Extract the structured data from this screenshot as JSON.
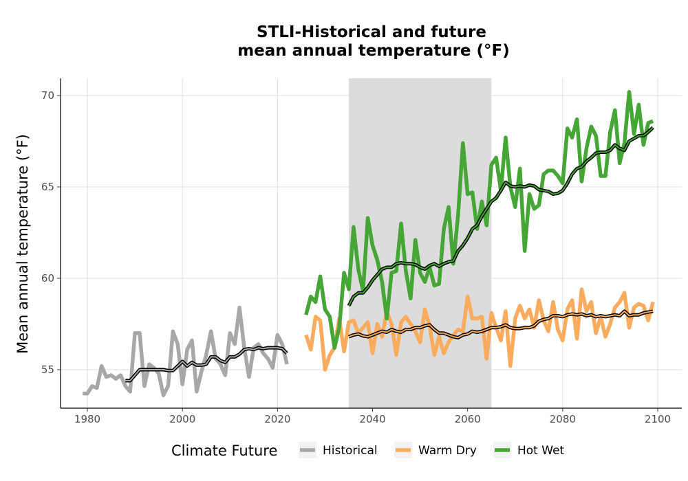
{
  "chart_data": {
    "type": "line",
    "title_line1": "STLI-Historical and future",
    "title_line2": "mean annual temperature (°F)",
    "xlabel": "",
    "ylabel": "Mean annual temperature (°F)",
    "xlim": [
      1977,
      2105
    ],
    "ylim": [
      52.9,
      71
    ],
    "x_ticks": [
      1980,
      2000,
      2020,
      2040,
      2060,
      2080,
      2100
    ],
    "y_ticks": [
      55,
      60,
      65,
      70
    ],
    "grid": true,
    "shaded_period": [
      2035,
      2065
    ],
    "legend": {
      "title": "Climate Future",
      "position": "bottom",
      "items": [
        {
          "label": "Historical",
          "color": "#a8a8a8"
        },
        {
          "label": "Warm Dry",
          "color": "#f9ac5e"
        },
        {
          "label": "Hot Wet",
          "color": "#45a535"
        }
      ]
    },
    "series": [
      {
        "name": "Historical",
        "color": "#a8a8a8",
        "x": [
          1979,
          1980,
          1981,
          1982,
          1983,
          1984,
          1985,
          1986,
          1987,
          1988,
          1989,
          1990,
          1991,
          1992,
          1993,
          1994,
          1995,
          1996,
          1997,
          1998,
          1999,
          2000,
          2001,
          2002,
          2003,
          2004,
          2005,
          2006,
          2007,
          2008,
          2009,
          2010,
          2011,
          2012,
          2013,
          2014,
          2015,
          2016,
          2017,
          2018,
          2019,
          2020,
          2021,
          2022
        ],
        "values": [
          53.7,
          53.7,
          54.1,
          54.0,
          55.2,
          54.6,
          54.7,
          54.5,
          54.7,
          54.1,
          53.8,
          57.0,
          57.0,
          54.1,
          55.3,
          55.1,
          54.8,
          53.6,
          54.1,
          57.1,
          56.4,
          54.2,
          56.1,
          56.6,
          53.8,
          54.9,
          55.8,
          57.1,
          55.6,
          55.3,
          54.7,
          57.0,
          56.4,
          58.4,
          56.2,
          54.6,
          56.2,
          56.4,
          55.9,
          55.6,
          55.1,
          56.9,
          56.4,
          55.3
        ],
        "smooth_x": [
          1988,
          1989,
          1990,
          1991,
          1992,
          1993,
          1994,
          1995,
          1996,
          1997,
          1998,
          1999,
          2000,
          2001,
          2002,
          2003,
          2004,
          2005,
          2006,
          2007,
          2008,
          2009,
          2010,
          2011,
          2012,
          2013,
          2014,
          2015,
          2016,
          2017,
          2018,
          2019,
          2020,
          2021,
          2022
        ],
        "smooth_values": [
          54.4,
          54.4,
          54.7,
          55.0,
          55.0,
          55.0,
          55.0,
          55.0,
          55.0,
          54.95,
          54.95,
          55.2,
          55.45,
          55.2,
          55.4,
          55.25,
          55.25,
          55.3,
          55.7,
          55.7,
          55.5,
          55.4,
          55.7,
          55.7,
          55.85,
          56.1,
          56.15,
          56.1,
          56.2,
          56.15,
          56.2,
          56.2,
          56.2,
          56.15,
          55.9
        ]
      },
      {
        "name": "Warm Dry",
        "color": "#f9ac5e",
        "x": [
          2026,
          2027,
          2028,
          2029,
          2030,
          2031,
          2032,
          2033,
          2034,
          2035,
          2036,
          2037,
          2038,
          2039,
          2040,
          2041,
          2042,
          2043,
          2044,
          2045,
          2046,
          2047,
          2048,
          2049,
          2050,
          2051,
          2052,
          2053,
          2054,
          2055,
          2056,
          2057,
          2058,
          2059,
          2060,
          2061,
          2062,
          2063,
          2064,
          2065,
          2066,
          2067,
          2068,
          2069,
          2070,
          2071,
          2072,
          2073,
          2074,
          2075,
          2076,
          2077,
          2078,
          2079,
          2080,
          2081,
          2082,
          2083,
          2084,
          2085,
          2086,
          2087,
          2088,
          2089,
          2090,
          2091,
          2092,
          2093,
          2094,
          2095,
          2096,
          2097,
          2098,
          2099
        ],
        "values": [
          56.9,
          56.1,
          57.9,
          57.7,
          55.0,
          55.8,
          56.2,
          57.8,
          56.0,
          57.6,
          57.7,
          57.0,
          57.3,
          57.6,
          55.9,
          57.5,
          56.8,
          58.2,
          57.5,
          55.8,
          57.6,
          57.9,
          57.5,
          57.1,
          56.5,
          58.3,
          57.4,
          55.8,
          56.8,
          55.9,
          56.5,
          56.9,
          57.2,
          57.1,
          59.0,
          57.8,
          57.8,
          57.9,
          55.6,
          58.1,
          57.3,
          56.6,
          58.2,
          55.2,
          57.8,
          58.5,
          57.8,
          58.3,
          57.3,
          58.8,
          57.7,
          57.1,
          58.7,
          57.2,
          56.6,
          58.3,
          58.8,
          56.7,
          59.4,
          58.2,
          58.7,
          57.0,
          57.9,
          56.8,
          57.5,
          58.4,
          58.7,
          59.2,
          57.3,
          58.4,
          58.6,
          58.5,
          57.7,
          58.7
        ],
        "smooth_x": [
          2035,
          2036,
          2037,
          2038,
          2039,
          2040,
          2041,
          2042,
          2043,
          2044,
          2045,
          2046,
          2047,
          2048,
          2049,
          2050,
          2051,
          2052,
          2053,
          2054,
          2055,
          2056,
          2057,
          2058,
          2059,
          2060,
          2061,
          2062,
          2063,
          2064,
          2065,
          2066,
          2067,
          2068,
          2069,
          2070,
          2071,
          2072,
          2073,
          2074,
          2075,
          2076,
          2077,
          2078,
          2079,
          2080,
          2081,
          2082,
          2083,
          2084,
          2085,
          2086,
          2087,
          2088,
          2089,
          2090,
          2091,
          2092,
          2093,
          2094,
          2095,
          2096,
          2097,
          2098,
          2099
        ],
        "smooth_values": [
          56.8,
          56.9,
          56.95,
          56.85,
          56.8,
          56.9,
          57.0,
          57.1,
          57.05,
          57.2,
          57.1,
          57.05,
          57.2,
          57.2,
          57.3,
          57.3,
          57.4,
          57.45,
          57.2,
          57.0,
          57.0,
          56.9,
          56.8,
          56.75,
          56.9,
          56.95,
          57.1,
          57.05,
          57.1,
          57.2,
          57.3,
          57.3,
          57.35,
          57.45,
          57.3,
          57.25,
          57.25,
          57.3,
          57.3,
          57.4,
          57.65,
          57.75,
          57.8,
          57.95,
          57.95,
          57.9,
          58.0,
          58.05,
          58.0,
          58.05,
          57.95,
          58.0,
          57.9,
          57.95,
          57.9,
          57.95,
          58.0,
          57.95,
          58.2,
          57.95,
          58.0,
          58.0,
          58.1,
          58.15,
          58.2
        ]
      },
      {
        "name": "Hot Wet",
        "color": "#45a535",
        "x": [
          2026,
          2027,
          2028,
          2029,
          2030,
          2031,
          2032,
          2033,
          2034,
          2035,
          2036,
          2037,
          2038,
          2039,
          2040,
          2041,
          2042,
          2043,
          2044,
          2045,
          2046,
          2047,
          2048,
          2049,
          2050,
          2051,
          2052,
          2053,
          2054,
          2055,
          2056,
          2057,
          2058,
          2059,
          2060,
          2061,
          2062,
          2063,
          2064,
          2065,
          2066,
          2067,
          2068,
          2069,
          2070,
          2071,
          2072,
          2073,
          2074,
          2075,
          2076,
          2077,
          2078,
          2079,
          2080,
          2081,
          2082,
          2083,
          2084,
          2085,
          2086,
          2087,
          2088,
          2089,
          2090,
          2091,
          2092,
          2093,
          2094,
          2095,
          2096,
          2097,
          2098,
          2099
        ],
        "values": [
          58.0,
          59.0,
          58.7,
          60.1,
          58.3,
          57.9,
          56.2,
          57.3,
          60.3,
          59.4,
          62.8,
          60.5,
          59.3,
          63.3,
          61.8,
          61.0,
          59.8,
          57.8,
          60.3,
          60.4,
          63.0,
          60.4,
          58.9,
          62.1,
          60.3,
          59.8,
          60.6,
          59.6,
          59.7,
          62.7,
          63.9,
          60.8,
          63.5,
          67.4,
          64.6,
          64.7,
          62.7,
          64.2,
          62.9,
          66.2,
          66.6,
          64.8,
          67.7,
          65.0,
          63.9,
          66.0,
          61.5,
          64.6,
          63.8,
          64.0,
          65.7,
          65.9,
          65.9,
          65.6,
          65.2,
          68.2,
          67.7,
          68.7,
          65.3,
          67.1,
          68.3,
          67.8,
          65.6,
          65.6,
          68.0,
          69.2,
          66.3,
          67.4,
          70.2,
          67.9,
          69.5,
          67.3,
          68.5,
          68.6
        ],
        "smooth_x": [
          2035,
          2036,
          2037,
          2038,
          2039,
          2040,
          2041,
          2042,
          2043,
          2044,
          2045,
          2046,
          2047,
          2048,
          2049,
          2050,
          2051,
          2052,
          2053,
          2054,
          2055,
          2056,
          2057,
          2058,
          2059,
          2060,
          2061,
          2062,
          2063,
          2064,
          2065,
          2066,
          2067,
          2068,
          2069,
          2070,
          2071,
          2072,
          2073,
          2074,
          2075,
          2076,
          2077,
          2078,
          2079,
          2080,
          2081,
          2082,
          2083,
          2084,
          2085,
          2086,
          2087,
          2088,
          2089,
          2090,
          2091,
          2092,
          2093,
          2094,
          2095,
          2096,
          2097,
          2098,
          2099
        ],
        "smooth_values": [
          58.5,
          59.0,
          59.2,
          59.2,
          59.5,
          59.9,
          60.2,
          60.5,
          60.6,
          60.6,
          60.8,
          60.85,
          60.8,
          60.8,
          60.75,
          60.6,
          60.5,
          60.7,
          60.8,
          60.65,
          60.8,
          60.9,
          60.95,
          61.5,
          61.8,
          62.2,
          62.7,
          62.9,
          63.4,
          63.8,
          64.2,
          64.4,
          64.8,
          65.25,
          65.05,
          65.0,
          65.05,
          65.0,
          65.1,
          65.05,
          64.85,
          64.8,
          64.75,
          64.6,
          64.65,
          64.8,
          65.2,
          65.7,
          66.0,
          66.1,
          66.4,
          66.6,
          66.85,
          66.9,
          66.9,
          67.0,
          67.3,
          67.1,
          67.0,
          67.5,
          67.65,
          67.8,
          67.8,
          68.0,
          68.25
        ]
      }
    ]
  }
}
